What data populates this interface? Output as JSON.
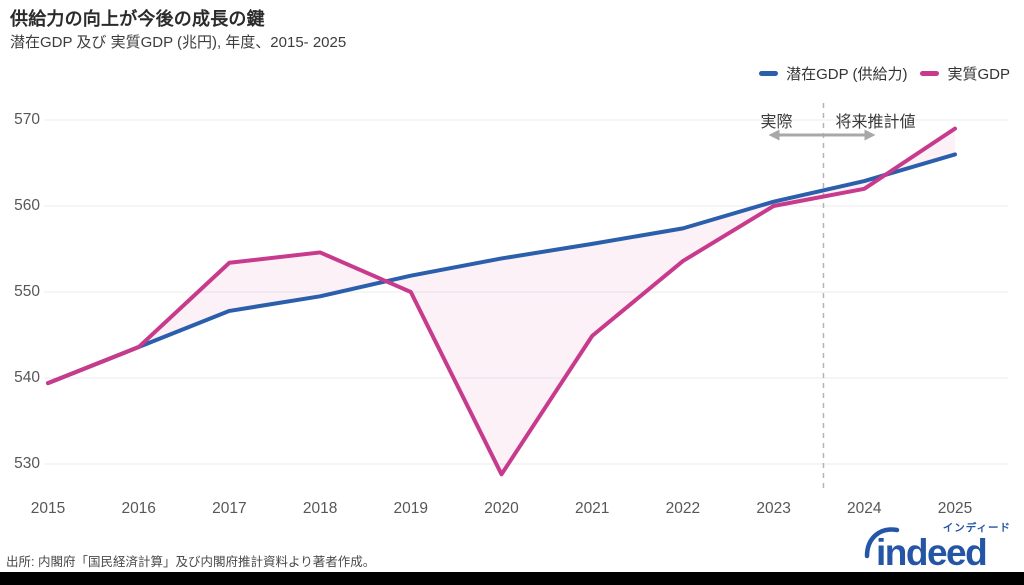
{
  "header": {
    "title": "供給力の向上が今後の成長の鍵",
    "subtitle": "潜在GDP 及び 実質GDP (兆円), 年度、2015- 2025"
  },
  "legend": {
    "items": [
      {
        "label": "潜在GDP (供給力)",
        "color": "#2b5fac"
      },
      {
        "label": "実質GDP",
        "color": "#c73a8c"
      }
    ]
  },
  "chart_data": {
    "type": "line",
    "title": "供給力の向上が今後の成長の鍵",
    "xlabel": "年度",
    "ylabel": "兆円",
    "x": [
      2015,
      2016,
      2017,
      2018,
      2019,
      2020,
      2021,
      2022,
      2023,
      2024,
      2025
    ],
    "series": [
      {
        "name": "潜在GDP (供給力)",
        "color": "#2b5fac",
        "values": [
          539.4,
          543.6,
          547.8,
          549.5,
          551.9,
          553.9,
          555.6,
          557.4,
          560.5,
          562.9,
          566.0
        ]
      },
      {
        "name": "実質GDP",
        "color": "#c73a8c",
        "values": [
          539.4,
          543.6,
          553.4,
          554.6,
          550.0,
          528.8,
          544.9,
          553.6,
          560.0,
          562.0,
          569.0
        ]
      }
    ],
    "yticks": [
      530,
      540,
      550,
      560,
      570
    ],
    "ylim": [
      525.5,
      571.5
    ],
    "grid": true,
    "gridline_color": "#ebebee",
    "legend_position": "top-right",
    "fill_between": {
      "series": [
        0,
        1
      ],
      "color": "rgba(199,58,140,0.07)"
    },
    "divider": {
      "x": 2023.55,
      "style": "dashed",
      "color": "#b4b4b8",
      "left_label": "実際",
      "right_label": "将来推計値",
      "arrow_color": "#a8a8a8"
    }
  },
  "footer": {
    "source": "出所: 内閣府「国民経済計算」及び内閣府推計資料より著者作成。"
  },
  "branding": {
    "logo_text": "indeed",
    "tagline": "インディード",
    "color": "#2456a5"
  }
}
